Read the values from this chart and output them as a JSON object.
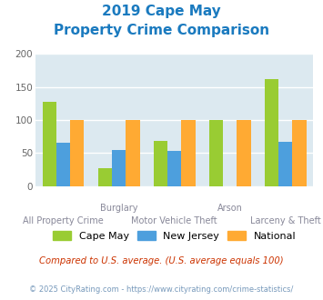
{
  "title_line1": "2019 Cape May",
  "title_line2": "Property Crime Comparison",
  "title_color": "#1a7abf",
  "categories": [
    "All Property Crime",
    "Burglary",
    "Motor Vehicle Theft",
    "Arson",
    "Larceny & Theft"
  ],
  "top_labels": [
    "",
    "Burglary",
    "",
    "Arson",
    ""
  ],
  "bottom_labels": [
    "All Property Crime",
    "",
    "Motor Vehicle Theft",
    "",
    "Larceny & Theft"
  ],
  "cape_may": [
    128,
    27,
    68,
    100,
    162
  ],
  "new_jersey": [
    65,
    55,
    53,
    0,
    67
  ],
  "national": [
    100,
    100,
    100,
    100,
    100
  ],
  "bar_colors": {
    "cape_may": "#99cc33",
    "new_jersey": "#4d9fdd",
    "national": "#ffaa33"
  },
  "ylim": [
    0,
    200
  ],
  "yticks": [
    0,
    50,
    100,
    150,
    200
  ],
  "legend_labels": [
    "Cape May",
    "New Jersey",
    "National"
  ],
  "footnote1": "Compared to U.S. average. (U.S. average equals 100)",
  "footnote2": "© 2025 CityRating.com - https://www.cityrating.com/crime-statistics/",
  "footnote1_color": "#cc3300",
  "footnote2_color": "#7799bb",
  "bg_color": "#dce9f0",
  "fig_bg": "#ffffff"
}
